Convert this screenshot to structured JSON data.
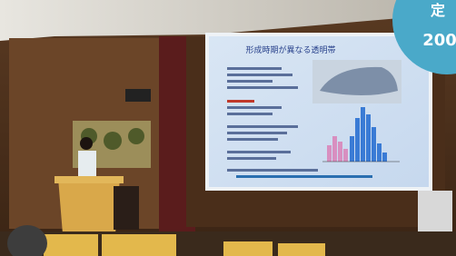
{
  "slide": {
    "title": "形成時期が異なる透明帯"
  },
  "badge": {
    "lines": [
      "定",
      "200"
    ]
  }
}
